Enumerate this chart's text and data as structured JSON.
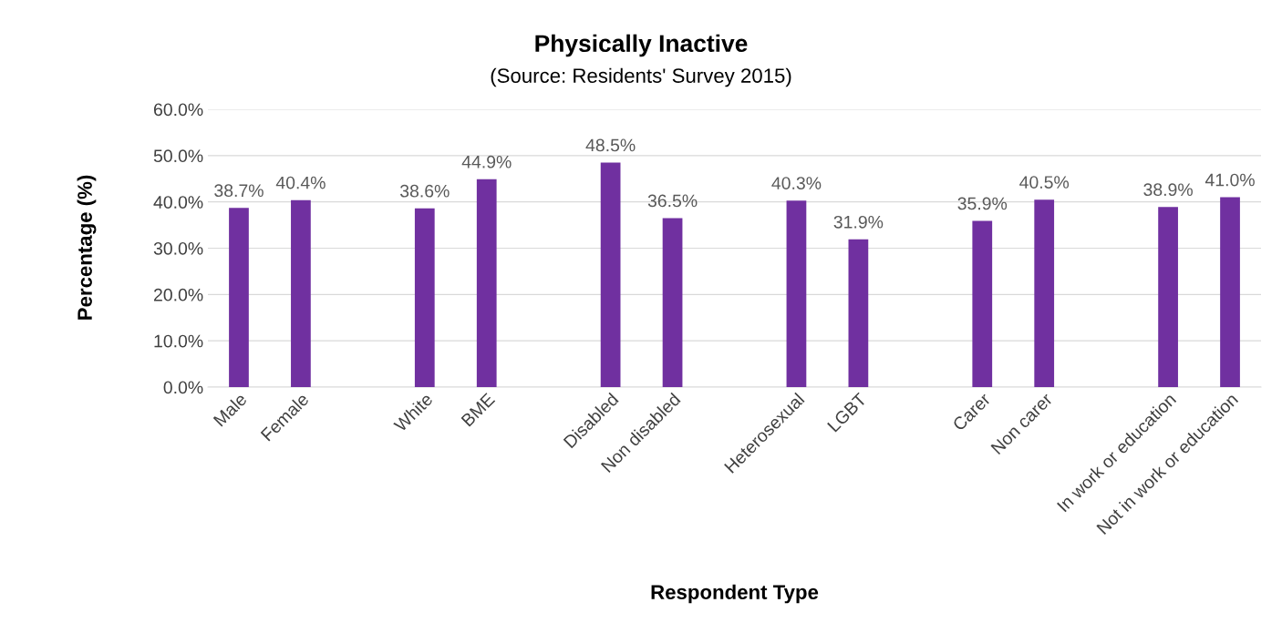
{
  "chart_data": {
    "type": "bar",
    "title": "Physically Inactive",
    "subtitle": "(Source: Residents' Survey 2015)",
    "xlabel": "Respondent Type",
    "ylabel": "Percentage (%)",
    "categories": [
      "Male",
      "Female",
      null,
      "White",
      "BME",
      null,
      "Disabled",
      "Non disabled",
      null,
      "Heterosexual",
      "LGBT",
      null,
      "Carer",
      "Non carer",
      null,
      "In work or education",
      "Not in work or education"
    ],
    "values": [
      38.7,
      40.4,
      null,
      38.6,
      44.9,
      null,
      48.5,
      36.5,
      null,
      40.3,
      31.9,
      null,
      35.9,
      40.5,
      null,
      38.9,
      41.0
    ],
    "value_labels": [
      "38.7%",
      "40.4%",
      null,
      "38.6%",
      "44.9%",
      null,
      "48.5%",
      "36.5%",
      null,
      "40.3%",
      "31.9%",
      null,
      "35.9%",
      "40.5%",
      null,
      "38.9%",
      "41.0%"
    ],
    "color": "#7030a0",
    "ylim": [
      0,
      60
    ],
    "yticks": [
      {
        "value": 0,
        "label": "0.0%"
      },
      {
        "value": 10,
        "label": "10.0%"
      },
      {
        "value": 20,
        "label": "20.0%"
      },
      {
        "value": 30,
        "label": "30.0%"
      },
      {
        "value": 40,
        "label": "40.0%"
      },
      {
        "value": 50,
        "label": "50.0%"
      },
      {
        "value": 60,
        "label": "60.0%"
      }
    ],
    "grid": "y"
  }
}
